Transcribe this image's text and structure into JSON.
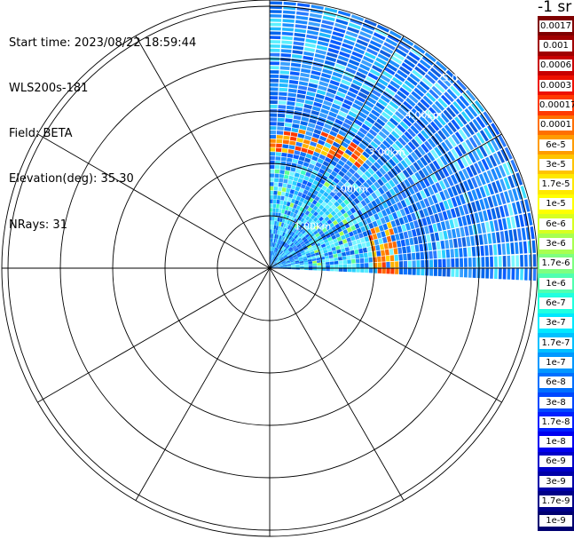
{
  "header": {
    "start_time": "Start time: 2023/08/22 18:59:44",
    "instrument": "WLS200s-181",
    "field": "Field: BETA",
    "elevation": "Elevation(deg): 35.30",
    "nrays": "NRays: 31"
  },
  "colorbar": {
    "unit": "-1 sr",
    "labels": [
      "0.0017",
      "0.001",
      "0.0006",
      "0.0003",
      "0.00017",
      "0.0001",
      "6e-5",
      "3e-5",
      "1.7e-5",
      "1e-5",
      "6e-6",
      "3e-6",
      "1.7e-6",
      "1e-6",
      "6e-7",
      "3e-7",
      "1.7e-7",
      "1e-7",
      "6e-8",
      "3e-8",
      "1.7e-8",
      "1e-8",
      "6e-9",
      "3e-9",
      "1.7e-9",
      "1e-9"
    ],
    "colors": [
      "#7f0000",
      "#a00000",
      "#c80000",
      "#ee1100",
      "#ff3a00",
      "#ff7000",
      "#ff9c00",
      "#ffc400",
      "#ffe800",
      "#ffff00",
      "#d8ff20",
      "#a8ff50",
      "#7eff80",
      "#50ffb0",
      "#20ffe0",
      "#00e8ff",
      "#00c0ff",
      "#0098ff",
      "#0070ff",
      "#0048ff",
      "#0020ff",
      "#0000f0",
      "#0000c8",
      "#0000a8",
      "#000088",
      "#000070"
    ]
  },
  "chart_data": {
    "type": "heatmap",
    "projection": "polar PPI scan",
    "field": "BETA",
    "units": "-1 sr",
    "scale": "log",
    "azimuth_range_deg": [
      0,
      93
    ],
    "nrays": 31,
    "range_ring_labels": [
      "1.00km",
      "2.00km",
      "3.00km",
      "4.00km",
      "5.0"
    ],
    "grid": true,
    "features": [
      {
        "description": "high-backscatter band",
        "range_km": [
          2.0,
          2.4
        ],
        "azimuth_deg": [
          70,
          95
        ],
        "level": "3e-5 to 1e-4"
      },
      {
        "description": "high-backscatter band",
        "range_km": [
          2.3,
          2.8
        ],
        "azimuth_deg": [
          0,
          60
        ],
        "level": "3e-5 to 1e-4"
      }
    ]
  }
}
